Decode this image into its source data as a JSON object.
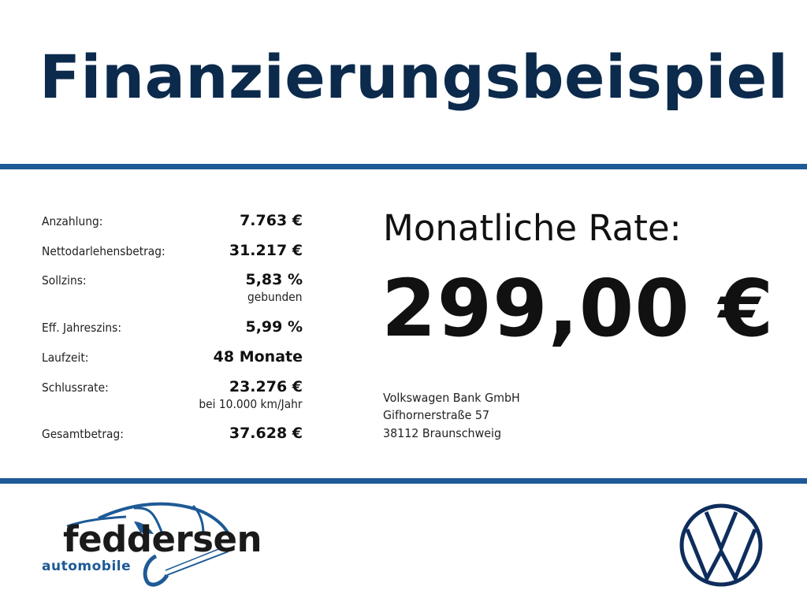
{
  "title": "Finanzierungsbeispiel",
  "details": [
    {
      "label": "Anzahlung:",
      "value": "7.763 €",
      "sub": ""
    },
    {
      "label": "Nettodarlehensbetrag:",
      "value": "31.217 €",
      "sub": ""
    },
    {
      "label": "Sollzins:",
      "value": "5,83 %",
      "sub": "gebunden"
    },
    {
      "label": "Eff. Jahreszins:",
      "value": "5,99 %",
      "sub": ""
    },
    {
      "label": "Laufzeit:",
      "value": "48 Monate",
      "sub": ""
    },
    {
      "label": "Schlussrate:",
      "value": "23.276 €",
      "sub": "bei 10.000 km/Jahr"
    },
    {
      "label": "Gesamtbetrag:",
      "value": "37.628 €",
      "sub": ""
    }
  ],
  "rate": {
    "label": "Monatliche Rate:",
    "value": "299,00 €"
  },
  "address": [
    "Volkswagen Bank GmbH",
    "Gifhornerstraße 57",
    "38112 Braunschweig"
  ],
  "dealer_logo": {
    "name": "feddersen",
    "tagline": "automobile"
  },
  "brand_logo": "vw-logo",
  "colors": {
    "title": "#0b2a4c",
    "rule": "#1e5a96",
    "logo_blue": "#1e5a96",
    "vw": "#0e2d5c"
  }
}
